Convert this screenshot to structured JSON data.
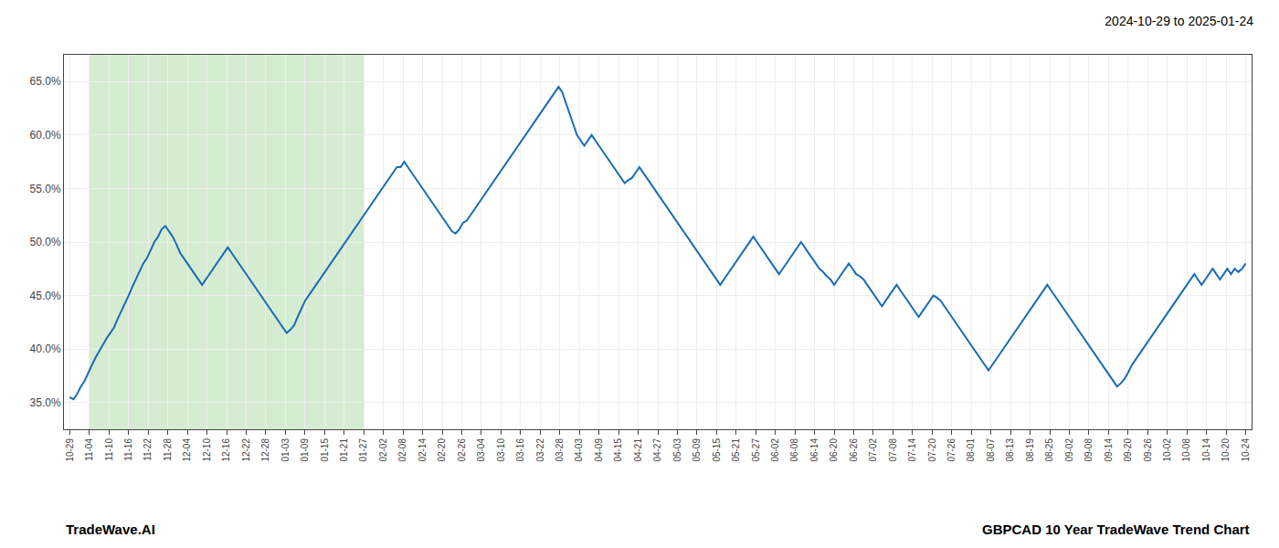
{
  "chart_data": {
    "type": "line",
    "title": "2024-10-29 to 2025-01-24",
    "annotations": [
      "TradeWave.AI",
      "GBPCAD 10 Year TradeWave Trend Chart"
    ],
    "color": "#1a6bb5",
    "grid": true,
    "highlight": {
      "x": [
        1,
        15
      ],
      "color": "#d6ecd2"
    },
    "xlim": [
      -0.3,
      60.3
    ],
    "xticks": [
      {
        "value": 0,
        "label": "10-29"
      },
      {
        "value": 1,
        "label": "11-04"
      },
      {
        "value": 2,
        "label": "11-10"
      },
      {
        "value": 3,
        "label": "11-16"
      },
      {
        "value": 4,
        "label": "11-22"
      },
      {
        "value": 5,
        "label": "11-28"
      },
      {
        "value": 6,
        "label": "12-04"
      },
      {
        "value": 7,
        "label": "12-10"
      },
      {
        "value": 8,
        "label": "12-16"
      },
      {
        "value": 9,
        "label": "12-22"
      },
      {
        "value": 10,
        "label": "12-28"
      },
      {
        "value": 11,
        "label": "01-03"
      },
      {
        "value": 12,
        "label": "01-09"
      },
      {
        "value": 13,
        "label": "01-15"
      },
      {
        "value": 14,
        "label": "01-21"
      },
      {
        "value": 15,
        "label": "01-27"
      },
      {
        "value": 16,
        "label": "02-02"
      },
      {
        "value": 17,
        "label": "02-08"
      },
      {
        "value": 18,
        "label": "02-14"
      },
      {
        "value": 19,
        "label": "02-20"
      },
      {
        "value": 20,
        "label": "02-26"
      },
      {
        "value": 21,
        "label": "03-04"
      },
      {
        "value": 22,
        "label": "03-10"
      },
      {
        "value": 23,
        "label": "03-16"
      },
      {
        "value": 24,
        "label": "03-22"
      },
      {
        "value": 25,
        "label": "03-28"
      },
      {
        "value": 26,
        "label": "04-03"
      },
      {
        "value": 27,
        "label": "04-09"
      },
      {
        "value": 28,
        "label": "04-15"
      },
      {
        "value": 29,
        "label": "04-21"
      },
      {
        "value": 30,
        "label": "04-27"
      },
      {
        "value": 31,
        "label": "05-03"
      },
      {
        "value": 32,
        "label": "05-09"
      },
      {
        "value": 33,
        "label": "05-15"
      },
      {
        "value": 34,
        "label": "05-21"
      },
      {
        "value": 35,
        "label": "05-27"
      },
      {
        "value": 36,
        "label": "06-02"
      },
      {
        "value": 37,
        "label": "06-08"
      },
      {
        "value": 38,
        "label": "06-14"
      },
      {
        "value": 39,
        "label": "06-20"
      },
      {
        "value": 40,
        "label": "06-26"
      },
      {
        "value": 41,
        "label": "07-02"
      },
      {
        "value": 42,
        "label": "07-08"
      },
      {
        "value": 43,
        "label": "07-14"
      },
      {
        "value": 44,
        "label": "07-20"
      },
      {
        "value": 45,
        "label": "07-26"
      },
      {
        "value": 46,
        "label": "08-01"
      },
      {
        "value": 47,
        "label": "08-07"
      },
      {
        "value": 48,
        "label": "08-13"
      },
      {
        "value": 49,
        "label": "08-19"
      },
      {
        "value": 50,
        "label": "08-25"
      },
      {
        "value": 51,
        "label": "09-02"
      },
      {
        "value": 52,
        "label": "09-08"
      },
      {
        "value": 53,
        "label": "09-14"
      },
      {
        "value": 54,
        "label": "09-20"
      },
      {
        "value": 55,
        "label": "09-26"
      },
      {
        "value": 56,
        "label": "10-02"
      },
      {
        "value": 57,
        "label": "10-08"
      },
      {
        "value": 58,
        "label": "10-14"
      },
      {
        "value": 59,
        "label": "10-20"
      },
      {
        "value": 60,
        "label": "10-24"
      }
    ],
    "ylim": [
      32.5,
      67.5
    ],
    "yticks": [
      {
        "value": 35.0,
        "label": "35.0%"
      },
      {
        "value": 40.0,
        "label": "40.0%"
      },
      {
        "value": 45.0,
        "label": "45.0%"
      },
      {
        "value": 50.0,
        "label": "50.0%"
      },
      {
        "value": 55.0,
        "label": "55.0%"
      },
      {
        "value": 60.0,
        "label": "60.0%"
      },
      {
        "value": 65.0,
        "label": "65.0%"
      }
    ],
    "x": [
      0,
      0.1875,
      0.375,
      0.5625,
      0.75,
      0.9375,
      1.125,
      1.3125,
      1.5,
      1.6875,
      1.875,
      2.0625,
      2.25,
      2.4375,
      2.625,
      2.8125,
      3,
      3.1875,
      3.375,
      3.5625,
      3.75,
      3.9375,
      4.125,
      4.3125,
      4.5,
      4.6875,
      4.875,
      5.0625,
      5.25,
      5.4375,
      5.625,
      5.8125,
      6,
      6.1875,
      6.375,
      6.5625,
      6.75,
      6.9375,
      7.125,
      7.3125,
      7.5,
      7.6875,
      7.875,
      8.0625,
      8.25,
      8.4375,
      8.625,
      8.8125,
      9,
      9.1875,
      9.375,
      9.5625,
      9.75,
      9.9375,
      10.125,
      10.3125,
      10.5,
      10.6875,
      10.875,
      11.0625,
      11.25,
      11.4375,
      11.625,
      11.8125,
      12,
      12.1875,
      12.375,
      12.5625,
      12.75,
      12.9375,
      13.125,
      13.3125,
      13.5,
      13.6875,
      13.875,
      14.0625,
      14.25,
      14.4375,
      14.625,
      14.8125,
      15,
      15.1875,
      15.375,
      15.5625,
      15.75,
      15.9375,
      16.125,
      16.3125,
      16.5,
      16.6875,
      16.875,
      17.0625,
      17.25,
      17.4375,
      17.625,
      17.8125,
      18,
      18.1875,
      18.375,
      18.5625,
      18.75,
      18.9375,
      19.125,
      19.3125,
      19.5,
      19.6875,
      19.875,
      20.0625,
      20.25,
      20.4375,
      20.625,
      20.8125,
      21,
      21.1875,
      21.375,
      21.5625,
      21.75,
      21.9375,
      22.125,
      22.3125,
      22.5,
      22.6875,
      22.875,
      23.0625,
      23.25,
      23.4375,
      23.625,
      23.8125,
      24,
      24.1875,
      24.375,
      24.5625,
      24.75,
      24.9375,
      25.125,
      25.3125,
      25.5,
      25.6875,
      25.875,
      26.0625,
      26.25,
      26.4375,
      26.625,
      26.8125,
      27,
      27.1875,
      27.375,
      27.5625,
      27.75,
      27.9375,
      28.125,
      28.3125,
      28.5,
      28.6875,
      28.875,
      29.0625,
      29.25,
      29.4375,
      29.625,
      29.8125,
      30,
      30.1875,
      30.375,
      30.5625,
      30.75,
      30.9375,
      31.125,
      31.3125,
      31.5,
      31.6875,
      31.875,
      32.0625,
      32.25,
      32.4375,
      32.625,
      32.8125,
      33,
      33.1875,
      33.375,
      33.5625,
      33.75,
      33.9375,
      34.125,
      34.3125,
      34.5,
      34.6875,
      34.875,
      35.0625,
      35.25,
      35.4375,
      35.625,
      35.8125,
      36,
      36.1875,
      36.375,
      36.5625,
      36.75,
      36.9375,
      37.125,
      37.3125,
      37.5,
      37.6875,
      37.875,
      38.0625,
      38.25,
      38.4375,
      38.625,
      38.8125,
      39,
      39.1875,
      39.375,
      39.5625,
      39.75,
      39.9375,
      40.125,
      40.3125,
      40.5,
      40.6875,
      40.875,
      41.0625,
      41.25,
      41.4375,
      41.625,
      41.8125,
      42,
      42.1875,
      42.375,
      42.5625,
      42.75,
      42.9375,
      43.125,
      43.3125,
      43.5,
      43.6875,
      43.875,
      44.0625,
      44.25,
      44.4375,
      44.625,
      44.8125,
      45,
      45.1875,
      45.375,
      45.5625,
      45.75,
      45.9375,
      46.125,
      46.3125,
      46.5,
      46.6875,
      46.875,
      47.0625,
      47.25,
      47.4375,
      47.625,
      47.8125,
      48,
      48.1875,
      48.375,
      48.5625,
      48.75,
      48.9375,
      49.125,
      49.3125,
      49.5,
      49.6875,
      49.875,
      50.0625,
      50.25,
      50.4375,
      50.625,
      50.8125,
      51,
      51.1875,
      51.375,
      51.5625,
      51.75,
      51.9375,
      52.125,
      52.3125,
      52.5,
      52.6875,
      52.875,
      53.0625,
      53.25,
      53.4375,
      53.625,
      53.8125,
      54,
      54.1875,
      54.375,
      54.5625,
      54.75,
      54.9375,
      55.125,
      55.3125,
      55.5,
      55.6875,
      55.875,
      56.0625,
      56.25,
      56.4375,
      56.625,
      56.8125,
      57,
      57.1875,
      57.375,
      57.5625,
      57.75,
      57.9375,
      58.125,
      58.3125,
      58.5,
      58.6875,
      58.875,
      59.0625,
      59.25,
      59.4375,
      59.625,
      59.8125,
      60
    ],
    "values": [
      35.5,
      35.3,
      35.8,
      36.5,
      37.0,
      37.8,
      38.5,
      39.2,
      39.8,
      40.5,
      41.0,
      41.5,
      42.0,
      42.8,
      43.5,
      44.2,
      45.0,
      45.8,
      46.5,
      47.2,
      48.0,
      48.5,
      49.2,
      50.0,
      50.5,
      51.2,
      51.5,
      51.0,
      50.5,
      49.8,
      49.0,
      48.5,
      48.0,
      47.5,
      47.0,
      46.5,
      46.0,
      46.5,
      47.0,
      47.5,
      48.0,
      48.5,
      49.0,
      49.5,
      49.0,
      48.5,
      48.0,
      47.5,
      47.0,
      46.5,
      46.0,
      45.5,
      45.0,
      44.5,
      44.0,
      43.5,
      43.0,
      42.5,
      42.0,
      41.5,
      41.8,
      42.2,
      43.0,
      43.8,
      44.5,
      45.0,
      45.5,
      46.0,
      46.5,
      47.0,
      47.5,
      48.0,
      48.5,
      49.0,
      49.5,
      50.0,
      50.5,
      51.0,
      51.5,
      52.0,
      52.5,
      53.0,
      53.5,
      54.0,
      54.5,
      55.0,
      55.5,
      56.0,
      56.5,
      57.0,
      57.0,
      57.5,
      57.0,
      56.5,
      56.0,
      55.5,
      55.0,
      54.5,
      54.0,
      53.5,
      53.0,
      52.5,
      52.0,
      51.5,
      51.0,
      50.8,
      51.2,
      51.8,
      52.0,
      52.5,
      53.0,
      53.5,
      54.0,
      54.5,
      55.0,
      55.5,
      56.0,
      56.5,
      57.0,
      57.5,
      58.0,
      58.5,
      59.0,
      59.5,
      60.0,
      60.5,
      61.0,
      61.5,
      62.0,
      62.5,
      63.0,
      63.5,
      64.0,
      64.5,
      64.0,
      63.0,
      62.0,
      61.0,
      60.0,
      59.5,
      59.0,
      59.5,
      60.0,
      59.5,
      59.0,
      58.5,
      58.0,
      57.5,
      57.0,
      56.5,
      56.0,
      55.5,
      55.8,
      56.0,
      56.5,
      57.0,
      56.5,
      56.0,
      55.5,
      55.0,
      54.5,
      54.0,
      53.5,
      53.0,
      52.5,
      52.0,
      51.5,
      51.0,
      50.5,
      50.0,
      49.5,
      49.0,
      48.5,
      48.0,
      47.5,
      47.0,
      46.5,
      46.0,
      46.5,
      47.0,
      47.5,
      48.0,
      48.5,
      49.0,
      49.5,
      50.0,
      50.5,
      50.0,
      49.5,
      49.0,
      48.5,
      48.0,
      47.5,
      47.0,
      47.5,
      48.0,
      48.5,
      49.0,
      49.5,
      50.0,
      49.5,
      49.0,
      48.5,
      48.0,
      47.5,
      47.2,
      46.8,
      46.5,
      46.0,
      46.5,
      47.0,
      47.5,
      48.0,
      47.5,
      47.0,
      46.8,
      46.5,
      46.0,
      45.5,
      45.0,
      44.5,
      44.0,
      44.5,
      45.0,
      45.5,
      46.0,
      45.5,
      45.0,
      44.5,
      44.0,
      43.5,
      43.0,
      43.5,
      44.0,
      44.5,
      45.0,
      44.8,
      44.5,
      44.0,
      43.5,
      43.0,
      42.5,
      42.0,
      41.5,
      41.0,
      40.5,
      40.0,
      39.5,
      39.0,
      38.5,
      38.0,
      38.5,
      39.0,
      39.5,
      40.0,
      40.5,
      41.0,
      41.5,
      42.0,
      42.5,
      43.0,
      43.5,
      44.0,
      44.5,
      45.0,
      45.5,
      46.0,
      45.5,
      45.0,
      44.5,
      44.0,
      43.5,
      43.0,
      42.5,
      42.0,
      41.5,
      41.0,
      40.5,
      40.0,
      39.5,
      39.0,
      38.5,
      38.0,
      37.5,
      37.0,
      36.5,
      36.8,
      37.2,
      37.8,
      38.5,
      39.0,
      39.5,
      40.0,
      40.5,
      41.0,
      41.5,
      42.0,
      42.5,
      43.0,
      43.5,
      44.0,
      44.5,
      45.0,
      45.5,
      46.0,
      46.5,
      47.0,
      46.5,
      46.0,
      46.5,
      47.0,
      47.5,
      47.0,
      46.5,
      47.0,
      47.5,
      47.0,
      47.5,
      47.2,
      47.5,
      48.0
    ]
  }
}
